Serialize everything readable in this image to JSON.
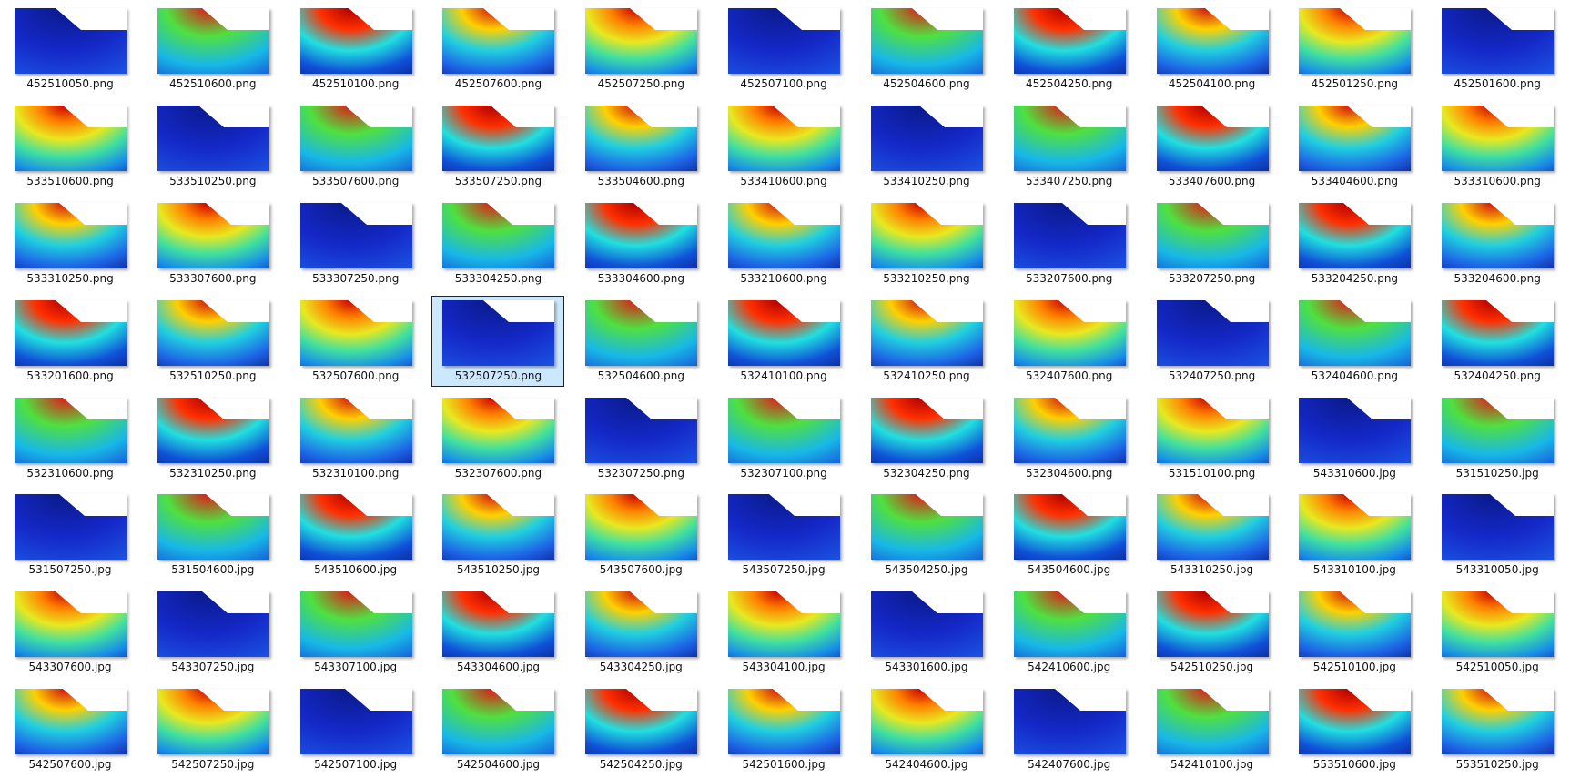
{
  "files": [
    {
      "name": "452510050.png"
    },
    {
      "name": "452510600.png"
    },
    {
      "name": "452510100.png"
    },
    {
      "name": "452507600.png"
    },
    {
      "name": "452507250.png"
    },
    {
      "name": "452507100.png"
    },
    {
      "name": "452504600.png"
    },
    {
      "name": "452504250.png"
    },
    {
      "name": "452504100.png"
    },
    {
      "name": "452501250.png"
    },
    {
      "name": "452501600.png"
    },
    {
      "name": "533510600.png"
    },
    {
      "name": "533510250.png"
    },
    {
      "name": "533507600.png"
    },
    {
      "name": "533507250.png"
    },
    {
      "name": "533504600.png"
    },
    {
      "name": "533410600.png"
    },
    {
      "name": "533410250.png"
    },
    {
      "name": "533407250.png"
    },
    {
      "name": "533407600.png"
    },
    {
      "name": "533404600.png"
    },
    {
      "name": "533310600.png"
    },
    {
      "name": "533310250.png"
    },
    {
      "name": "533307600.png"
    },
    {
      "name": "533307250.png"
    },
    {
      "name": "533304250.png"
    },
    {
      "name": "533304600.png"
    },
    {
      "name": "533210600.png"
    },
    {
      "name": "533210250.png"
    },
    {
      "name": "533207600.png"
    },
    {
      "name": "533207250.png"
    },
    {
      "name": "533204250.png"
    },
    {
      "name": "533204600.png"
    },
    {
      "name": "533201600.png"
    },
    {
      "name": "532510250.png"
    },
    {
      "name": "532507600.png"
    },
    {
      "name": "532507250.png"
    },
    {
      "name": "532504600.png"
    },
    {
      "name": "532410100.png"
    },
    {
      "name": "532410250.png"
    },
    {
      "name": "532407600.png"
    },
    {
      "name": "532407250.png"
    },
    {
      "name": "532404600.png"
    },
    {
      "name": "532404250.png"
    },
    {
      "name": "532310600.png"
    },
    {
      "name": "532310250.png"
    },
    {
      "name": "532310100.png"
    },
    {
      "name": "532307600.png"
    },
    {
      "name": "532307250.png"
    },
    {
      "name": "532307100.png"
    },
    {
      "name": "532304250.png"
    },
    {
      "name": "532304600.png"
    },
    {
      "name": "531510100.png"
    },
    {
      "name": "543310600.jpg"
    },
    {
      "name": "531510250.jpg"
    },
    {
      "name": "531507250.jpg"
    },
    {
      "name": "531504600.jpg"
    },
    {
      "name": "543510600.jpg"
    },
    {
      "name": "543510250.jpg"
    },
    {
      "name": "543507600.jpg"
    },
    {
      "name": "543507250.jpg"
    },
    {
      "name": "543504250.jpg"
    },
    {
      "name": "543504600.jpg"
    },
    {
      "name": "543310250.jpg"
    },
    {
      "name": "543310100.jpg"
    },
    {
      "name": "543310050.jpg"
    },
    {
      "name": "543307600.jpg"
    },
    {
      "name": "543307250.jpg"
    },
    {
      "name": "543307100.jpg"
    },
    {
      "name": "543304600.jpg"
    },
    {
      "name": "543304250.jpg"
    },
    {
      "name": "543304100.jpg"
    },
    {
      "name": "543301600.jpg"
    },
    {
      "name": "542410600.jpg"
    },
    {
      "name": "542510250.jpg"
    },
    {
      "name": "542510100.jpg"
    },
    {
      "name": "542510050.jpg"
    },
    {
      "name": "542507600.jpg"
    },
    {
      "name": "542507250.jpg"
    },
    {
      "name": "542507100.jpg"
    },
    {
      "name": "542504600.jpg"
    },
    {
      "name": "542504250.jpg"
    },
    {
      "name": "542501600.jpg"
    },
    {
      "name": "542404600.jpg"
    },
    {
      "name": "542407600.jpg"
    },
    {
      "name": "542410100.jpg"
    },
    {
      "name": "553510600.jpg"
    },
    {
      "name": "553510250.jpg"
    }
  ]
}
